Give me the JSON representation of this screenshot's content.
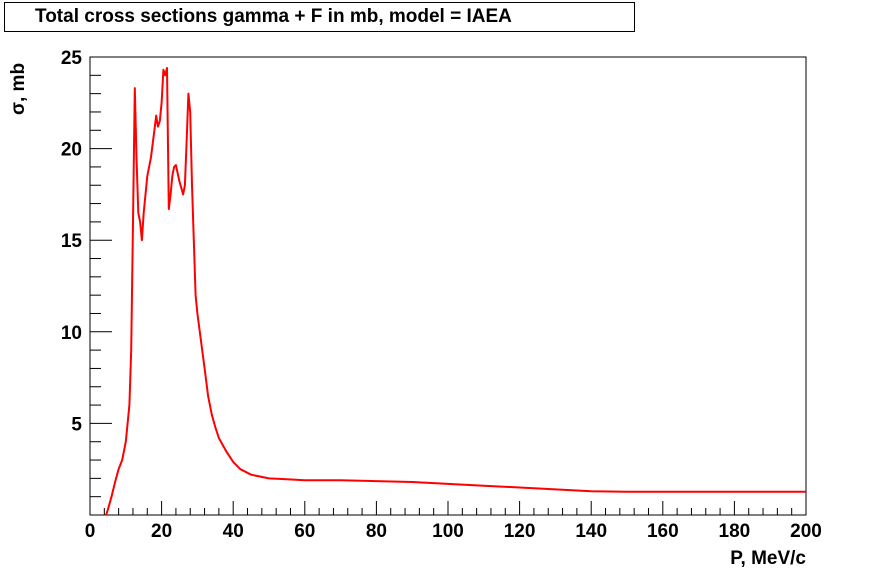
{
  "chart_data": {
    "type": "line",
    "title": "Total cross sections gamma + F in mb, model = IAEA",
    "xlabel": "P, MeV/c",
    "ylabel": "σ, mb",
    "xlim": [
      0,
      200
    ],
    "ylim": [
      0,
      25
    ],
    "xticks": [
      "0",
      "20",
      "40",
      "60",
      "80",
      "100",
      "120",
      "140",
      "160",
      "180",
      "200"
    ],
    "yticks": [
      "5",
      "10",
      "15",
      "20",
      "25"
    ],
    "grid": false,
    "legend": "none",
    "series": [
      {
        "color": "#ff0000",
        "x": [
          4.5,
          5,
          6,
          7,
          8,
          9,
          10,
          10.5,
          11,
          11.5,
          12,
          12.5,
          13,
          13.5,
          14,
          14.5,
          15,
          16,
          17,
          18,
          18.5,
          19,
          19.5,
          20,
          20.5,
          21,
          21.5,
          22,
          22.5,
          23,
          23.5,
          24,
          25,
          26,
          26.5,
          27,
          27.5,
          28,
          28.5,
          29,
          29.5,
          30,
          31,
          32,
          33,
          34,
          35,
          36,
          38,
          40,
          42,
          45,
          50,
          55,
          60,
          70,
          80,
          90,
          100,
          110,
          120,
          130,
          140,
          150,
          160,
          170,
          180,
          190,
          200
        ],
        "y": [
          0,
          0.3,
          1.0,
          1.8,
          2.5,
          3.0,
          4.0,
          5.0,
          6.0,
          9.0,
          16.0,
          23.3,
          19.5,
          16.5,
          16.0,
          15.0,
          16.5,
          18.5,
          19.5,
          21.0,
          21.8,
          21.2,
          21.5,
          22.5,
          24.3,
          24.0,
          24.4,
          16.7,
          17.5,
          18.5,
          19.0,
          19.1,
          18.2,
          17.5,
          18.0,
          20.5,
          23.0,
          22.0,
          18.0,
          15.0,
          12.0,
          11.0,
          9.5,
          8.0,
          6.5,
          5.5,
          4.8,
          4.2,
          3.5,
          2.9,
          2.5,
          2.2,
          2.0,
          1.95,
          1.9,
          1.9,
          1.85,
          1.8,
          1.7,
          1.6,
          1.5,
          1.4,
          1.3,
          1.27,
          1.27,
          1.27,
          1.27,
          1.27,
          1.27
        ]
      }
    ]
  }
}
